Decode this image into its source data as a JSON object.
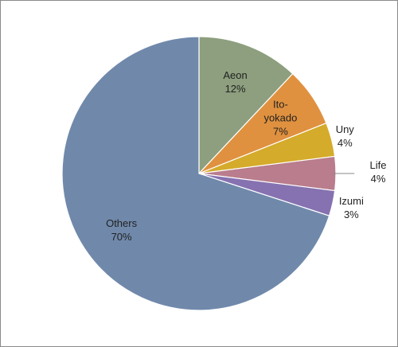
{
  "chart_data": {
    "type": "pie",
    "categories": [
      "Aeon",
      "Ito-yokado",
      "Uny",
      "Life",
      "Izumi",
      "Others"
    ],
    "values": [
      12,
      7,
      4,
      4,
      3,
      70
    ],
    "value_labels": [
      "12%",
      "7%",
      "4%",
      "4%",
      "3%",
      "70%"
    ],
    "colors": [
      "#8d9f7e",
      "#e0913f",
      "#d4ab2b",
      "#b97d8d",
      "#8672b0",
      "#7089ab"
    ]
  }
}
